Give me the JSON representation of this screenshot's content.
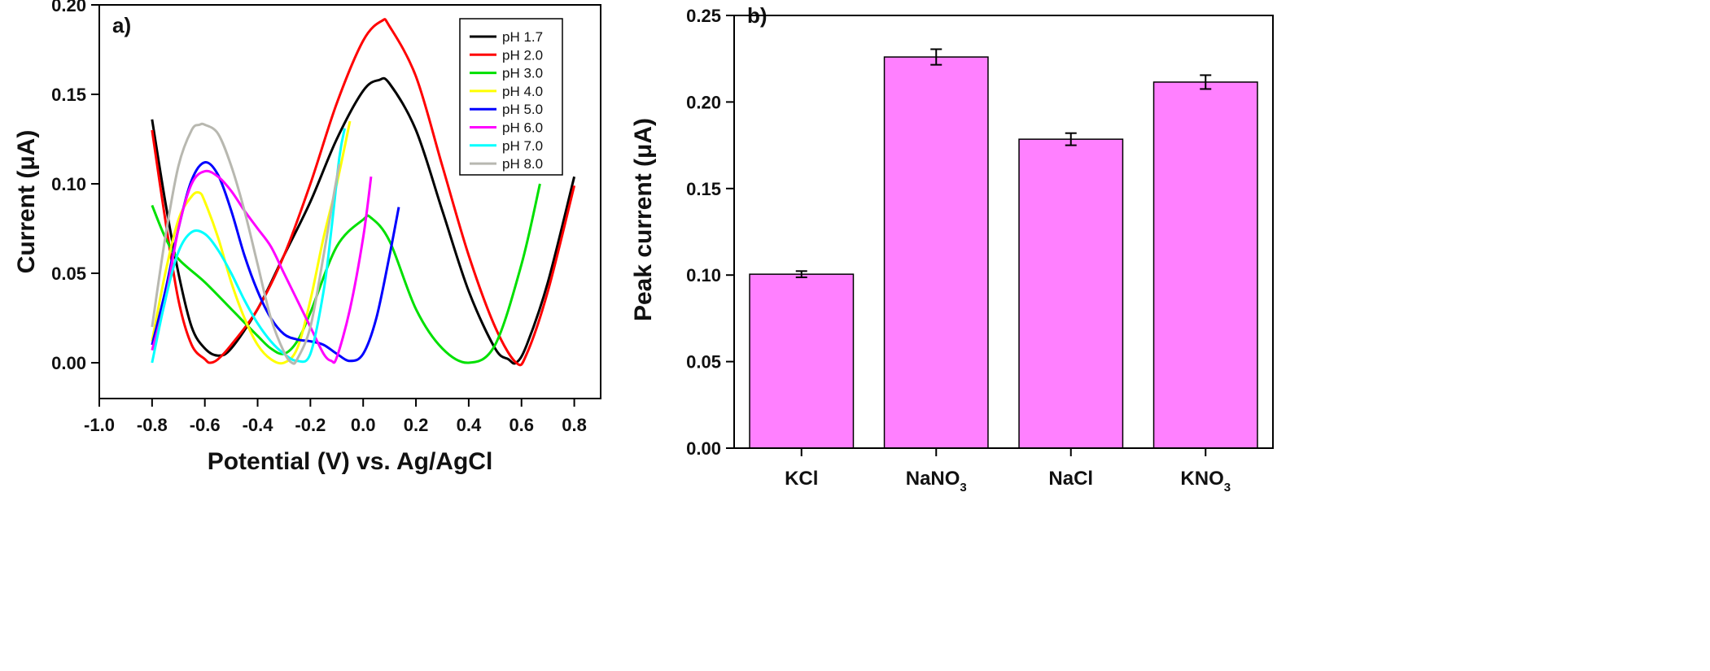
{
  "chart_data": [
    {
      "panel": "a)",
      "type": "line",
      "xlabel": "Potential (V) vs. Ag/AgCl",
      "ylabel": "Current (μA)",
      "xlim": [
        -1.0,
        0.9
      ],
      "ylim": [
        -0.02,
        0.2
      ],
      "xticks": [
        -1.0,
        -0.8,
        -0.6,
        -0.4,
        -0.2,
        0.0,
        0.2,
        0.4,
        0.6,
        0.8
      ],
      "xtick_labels": [
        "-1.0",
        "-0.8",
        "-0.6",
        "-0.4",
        "-0.2",
        "0.0",
        "0.2",
        "0.4",
        "0.6",
        "0.8"
      ],
      "yticks": [
        0.0,
        0.05,
        0.1,
        0.15,
        0.2
      ],
      "ytick_labels": [
        "0.00",
        "0.05",
        "0.10",
        "0.15",
        "0.20"
      ],
      "legend_position": "top-right",
      "series": [
        {
          "name": "pH 1.7",
          "color": "#000000",
          "x": [
            -0.8,
            -0.75,
            -0.7,
            -0.65,
            -0.6,
            -0.55,
            -0.5,
            -0.4,
            -0.3,
            -0.2,
            -0.1,
            0.0,
            0.06,
            0.1,
            0.2,
            0.3,
            0.4,
            0.5,
            0.55,
            0.58,
            0.62,
            0.7,
            0.8
          ],
          "y": [
            0.136,
            0.09,
            0.05,
            0.02,
            0.008,
            0.004,
            0.008,
            0.03,
            0.06,
            0.09,
            0.125,
            0.152,
            0.158,
            0.156,
            0.13,
            0.085,
            0.04,
            0.008,
            0.002,
            0.0,
            0.01,
            0.045,
            0.104
          ]
        },
        {
          "name": "pH 2.0",
          "color": "#ff0000",
          "x": [
            -0.8,
            -0.75,
            -0.7,
            -0.65,
            -0.6,
            -0.58,
            -0.55,
            -0.5,
            -0.4,
            -0.3,
            -0.2,
            -0.1,
            0.0,
            0.07,
            0.1,
            0.2,
            0.3,
            0.4,
            0.5,
            0.58,
            0.62,
            0.7,
            0.8
          ],
          "y": [
            0.13,
            0.08,
            0.035,
            0.01,
            0.002,
            0.0,
            0.002,
            0.01,
            0.03,
            0.06,
            0.1,
            0.145,
            0.18,
            0.191,
            0.188,
            0.16,
            0.11,
            0.06,
            0.02,
            0.0,
            0.005,
            0.04,
            0.099
          ]
        },
        {
          "name": "pH 3.0",
          "color": "#00e000",
          "x": [
            -0.8,
            -0.75,
            -0.7,
            -0.6,
            -0.5,
            -0.4,
            -0.35,
            -0.3,
            -0.25,
            -0.2,
            -0.1,
            0.0,
            0.03,
            0.1,
            0.2,
            0.3,
            0.4,
            0.5,
            0.6,
            0.67
          ],
          "y": [
            0.088,
            0.07,
            0.058,
            0.045,
            0.03,
            0.015,
            0.008,
            0.005,
            0.012,
            0.028,
            0.065,
            0.08,
            0.081,
            0.068,
            0.03,
            0.008,
            0.0,
            0.01,
            0.055,
            0.1
          ]
        },
        {
          "name": "pH 4.0",
          "color": "#ffff00",
          "x": [
            -0.8,
            -0.75,
            -0.7,
            -0.65,
            -0.62,
            -0.6,
            -0.55,
            -0.5,
            -0.45,
            -0.4,
            -0.35,
            -0.3,
            -0.25,
            -0.2,
            -0.15,
            -0.1,
            -0.05
          ],
          "y": [
            0.012,
            0.05,
            0.08,
            0.093,
            0.095,
            0.09,
            0.07,
            0.045,
            0.025,
            0.01,
            0.002,
            0.0,
            0.008,
            0.035,
            0.07,
            0.1,
            0.135
          ]
        },
        {
          "name": "pH 5.0",
          "color": "#0000ff",
          "x": [
            -0.8,
            -0.75,
            -0.7,
            -0.65,
            -0.6,
            -0.55,
            -0.5,
            -0.45,
            -0.4,
            -0.35,
            -0.3,
            -0.25,
            -0.2,
            -0.15,
            -0.1,
            -0.05,
            0.0,
            0.05,
            0.1,
            0.135
          ],
          "y": [
            0.01,
            0.04,
            0.075,
            0.102,
            0.112,
            0.105,
            0.085,
            0.06,
            0.04,
            0.025,
            0.016,
            0.013,
            0.012,
            0.01,
            0.005,
            0.001,
            0.005,
            0.025,
            0.06,
            0.087
          ]
        },
        {
          "name": "pH 6.0",
          "color": "#ff00ff",
          "x": [
            -0.8,
            -0.75,
            -0.7,
            -0.65,
            -0.6,
            -0.55,
            -0.5,
            -0.45,
            -0.4,
            -0.35,
            -0.3,
            -0.25,
            -0.2,
            -0.15,
            -0.12,
            -0.1,
            -0.05,
            0.0,
            0.03
          ],
          "y": [
            0.007,
            0.035,
            0.075,
            0.1,
            0.107,
            0.104,
            0.096,
            0.085,
            0.075,
            0.065,
            0.05,
            0.035,
            0.02,
            0.005,
            0.001,
            0.003,
            0.03,
            0.07,
            0.104
          ]
        },
        {
          "name": "pH 7.0",
          "color": "#00ffff",
          "x": [
            -0.8,
            -0.75,
            -0.7,
            -0.65,
            -0.6,
            -0.55,
            -0.5,
            -0.45,
            -0.4,
            -0.35,
            -0.3,
            -0.25,
            -0.2,
            -0.15,
            -0.12,
            -0.09,
            -0.07
          ],
          "y": [
            0.0,
            0.035,
            0.062,
            0.073,
            0.072,
            0.063,
            0.05,
            0.035,
            0.022,
            0.012,
            0.005,
            0.001,
            0.005,
            0.04,
            0.075,
            0.115,
            0.131
          ]
        },
        {
          "name": "pH 8.0",
          "color": "#b8b8b0",
          "x": [
            -0.8,
            -0.75,
            -0.7,
            -0.65,
            -0.62,
            -0.6,
            -0.55,
            -0.5,
            -0.45,
            -0.4,
            -0.35,
            -0.3,
            -0.27,
            -0.25,
            -0.2,
            -0.15,
            -0.11,
            -0.09
          ],
          "y": [
            0.02,
            0.07,
            0.11,
            0.13,
            0.133,
            0.133,
            0.128,
            0.11,
            0.085,
            0.055,
            0.025,
            0.006,
            0.0,
            0.002,
            0.02,
            0.06,
            0.095,
            0.111
          ]
        }
      ]
    },
    {
      "panel": "b)",
      "type": "bar",
      "xlabel": "",
      "ylabel": "Peak current (μA)",
      "ylim": [
        0.0,
        0.25
      ],
      "yticks": [
        0.0,
        0.05,
        0.1,
        0.15,
        0.2,
        0.25
      ],
      "ytick_labels": [
        "0.00",
        "0.05",
        "0.10",
        "0.15",
        "0.20",
        "0.25"
      ],
      "bar_color": "#ff80ff",
      "categories": [
        {
          "base": "KCl",
          "sub": ""
        },
        {
          "base": "NaNO",
          "sub": "3"
        },
        {
          "base": "NaCl",
          "sub": ""
        },
        {
          "base": "KNO",
          "sub": "3"
        }
      ],
      "values": [
        0.1005,
        0.226,
        0.1785,
        0.2115
      ],
      "errors": [
        0.0018,
        0.0045,
        0.0035,
        0.004
      ]
    }
  ]
}
